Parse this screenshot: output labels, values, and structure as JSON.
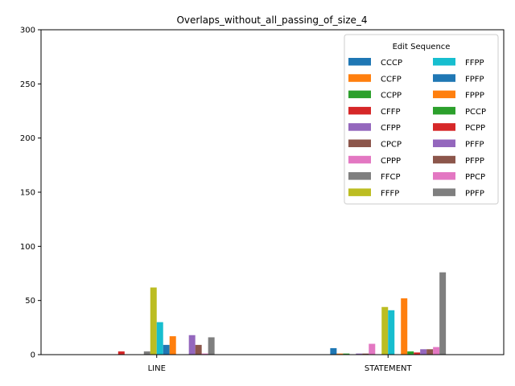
{
  "chart_data": {
    "type": "bar",
    "title": "Overlaps_without_all_passing_of_size_4",
    "xlabel": "",
    "ylabel": "",
    "categories": [
      "LINE",
      "STATEMENT"
    ],
    "ylim": [
      0,
      300
    ],
    "yticks": [
      0,
      50,
      100,
      150,
      200,
      250,
      300
    ],
    "grid": false,
    "legend": {
      "title": "Edit Sequence",
      "placement": "top-right",
      "columns": 2
    },
    "series": [
      {
        "name": "CCCP",
        "color": "#1f77b4",
        "values": [
          0,
          6
        ]
      },
      {
        "name": "CCFP",
        "color": "#ff7f0e",
        "values": [
          0,
          1
        ]
      },
      {
        "name": "CCPP",
        "color": "#2ca02c",
        "values": [
          0,
          1
        ]
      },
      {
        "name": "CFFP",
        "color": "#d62728",
        "values": [
          3,
          0
        ]
      },
      {
        "name": "CFPP",
        "color": "#9467bd",
        "values": [
          0,
          1
        ]
      },
      {
        "name": "CPCP",
        "color": "#8c564b",
        "values": [
          0,
          1
        ]
      },
      {
        "name": "CPPP",
        "color": "#e377c2",
        "values": [
          0,
          10
        ]
      },
      {
        "name": "FFCP",
        "color": "#7f7f7f",
        "values": [
          3,
          0
        ]
      },
      {
        "name": "FFFP",
        "color": "#bcbd22",
        "values": [
          62,
          44
        ]
      },
      {
        "name": "FFPP",
        "color": "#17becf",
        "values": [
          30,
          41
        ]
      },
      {
        "name": "FPFP",
        "color": "#1f77b4",
        "values": [
          9,
          0
        ]
      },
      {
        "name": "FPPP",
        "color": "#ff7f0e",
        "values": [
          17,
          52
        ]
      },
      {
        "name": "PCCP",
        "color": "#2ca02c",
        "values": [
          0,
          3
        ]
      },
      {
        "name": "PCPP",
        "color": "#d62728",
        "values": [
          0,
          2
        ]
      },
      {
        "name": "PFFP",
        "color": "#9467bd",
        "values": [
          18,
          5
        ]
      },
      {
        "name": "PFPP",
        "color": "#8c564b",
        "values": [
          9,
          5
        ]
      },
      {
        "name": "PPCP",
        "color": "#e377c2",
        "values": [
          1,
          7
        ]
      },
      {
        "name": "PPFP",
        "color": "#7f7f7f",
        "values": [
          16,
          76
        ]
      }
    ]
  }
}
